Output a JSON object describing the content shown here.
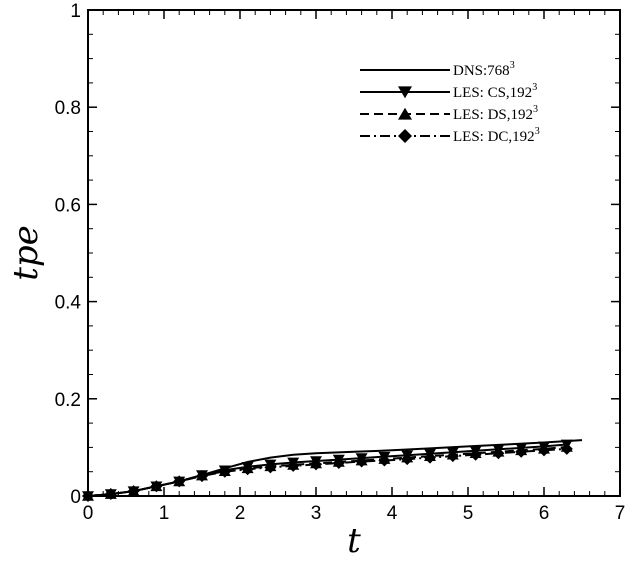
{
  "chart_data": {
    "type": "line",
    "xlabel": "t",
    "ylabel": "tpe",
    "xlim": [
      0,
      7
    ],
    "ylim": [
      0,
      1
    ],
    "x_ticks": [
      0,
      1,
      2,
      3,
      4,
      5,
      6,
      7
    ],
    "y_ticks": [
      0,
      0.2,
      0.4,
      0.6,
      0.8,
      1
    ],
    "x_tick_labels": [
      "0",
      "1",
      "2",
      "3",
      "4",
      "5",
      "6",
      "7"
    ],
    "y_tick_labels": [
      "0",
      "0.2",
      "0.4",
      "0.6",
      "0.8",
      "1"
    ],
    "grid": false,
    "legend_position": "top-right",
    "series": [
      {
        "name": "DNS:768",
        "name_sup": "3",
        "line_style": "solid",
        "marker": "none",
        "x": [
          0,
          0.3,
          0.6,
          0.9,
          1.2,
          1.5,
          1.8,
          2.1,
          2.4,
          2.7,
          3.0,
          3.5,
          4.0,
          4.5,
          5.0,
          5.5,
          6.0,
          6.5
        ],
        "y": [
          0,
          0.004,
          0.01,
          0.02,
          0.03,
          0.043,
          0.057,
          0.07,
          0.079,
          0.085,
          0.088,
          0.091,
          0.094,
          0.098,
          0.102,
          0.106,
          0.11,
          0.115
        ]
      },
      {
        "name": "LES: CS,192",
        "name_sup": "3",
        "line_style": "solid",
        "marker": "triangle-down",
        "x": [
          0,
          0.3,
          0.6,
          0.9,
          1.2,
          1.5,
          1.8,
          2.1,
          2.4,
          2.7,
          3.0,
          3.3,
          3.6,
          3.9,
          4.2,
          4.5,
          4.8,
          5.1,
          5.4,
          5.7,
          6.0,
          6.3
        ],
        "y": [
          0,
          0.004,
          0.01,
          0.02,
          0.03,
          0.043,
          0.053,
          0.06,
          0.065,
          0.069,
          0.072,
          0.075,
          0.078,
          0.081,
          0.084,
          0.087,
          0.09,
          0.093,
          0.096,
          0.099,
          0.102,
          0.106
        ]
      },
      {
        "name": "LES: DS,192",
        "name_sup": "3",
        "line_style": "dashed",
        "marker": "triangle-up",
        "x": [
          0,
          0.3,
          0.6,
          0.9,
          1.2,
          1.5,
          1.8,
          2.1,
          2.4,
          2.7,
          3.0,
          3.3,
          3.6,
          3.9,
          4.2,
          4.5,
          4.8,
          5.1,
          5.4,
          5.7,
          6.0,
          6.3
        ],
        "y": [
          0,
          0.004,
          0.01,
          0.02,
          0.03,
          0.042,
          0.051,
          0.057,
          0.061,
          0.064,
          0.067,
          0.07,
          0.073,
          0.076,
          0.079,
          0.082,
          0.085,
          0.088,
          0.091,
          0.094,
          0.097,
          0.101
        ]
      },
      {
        "name": "LES: DC,192",
        "name_sup": "3",
        "line_style": "dashdot",
        "marker": "diamond",
        "x": [
          0,
          0.3,
          0.6,
          0.9,
          1.2,
          1.5,
          1.8,
          2.1,
          2.4,
          2.7,
          3.0,
          3.3,
          3.6,
          3.9,
          4.2,
          4.5,
          4.8,
          5.1,
          5.4,
          5.7,
          6.0,
          6.3
        ],
        "y": [
          0,
          0.004,
          0.01,
          0.02,
          0.03,
          0.041,
          0.05,
          0.055,
          0.059,
          0.062,
          0.065,
          0.068,
          0.071,
          0.073,
          0.076,
          0.079,
          0.082,
          0.085,
          0.088,
          0.091,
          0.094,
          0.097
        ]
      }
    ]
  }
}
